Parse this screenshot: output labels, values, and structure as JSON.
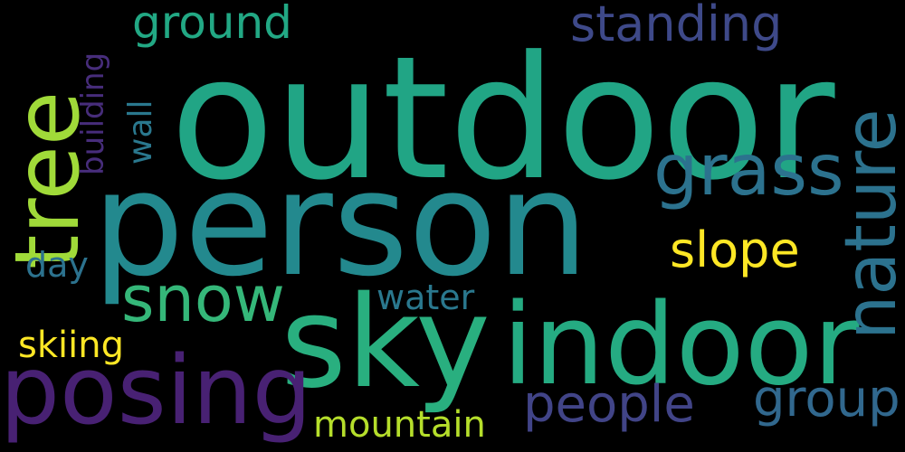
{
  "words": [
    {
      "id": "outdoor",
      "text": "outdoor",
      "color": "#21a585"
    },
    {
      "id": "person",
      "text": "person",
      "color": "#23898e"
    },
    {
      "id": "sky",
      "text": "sky",
      "color": "#29af7f"
    },
    {
      "id": "indoor",
      "text": "indoor",
      "color": "#25ab82"
    },
    {
      "id": "posing",
      "text": "posing",
      "color": "#482173"
    },
    {
      "id": "tree",
      "text": "tree",
      "color": "#a0da39"
    },
    {
      "id": "nature",
      "text": "nature",
      "color": "#2c728e"
    },
    {
      "id": "snow",
      "text": "snow",
      "color": "#35b779"
    },
    {
      "id": "grass",
      "text": "grass",
      "color": "#2c728e"
    },
    {
      "id": "standing",
      "text": "standing",
      "color": "#3e4989"
    },
    {
      "id": "ground",
      "text": "ground",
      "color": "#22a884"
    },
    {
      "id": "slope",
      "text": "slope",
      "color": "#fde725"
    },
    {
      "id": "people",
      "text": "people",
      "color": "#414487"
    },
    {
      "id": "group",
      "text": "group",
      "color": "#31688e"
    },
    {
      "id": "mountain",
      "text": "mountain",
      "color": "#b5de2b"
    },
    {
      "id": "water",
      "text": "water",
      "color": "#2a788e"
    },
    {
      "id": "skiing",
      "text": "skiing",
      "color": "#fde725"
    },
    {
      "id": "day",
      "text": "day",
      "color": "#2c728e"
    },
    {
      "id": "building",
      "text": "building",
      "color": "#472d7b"
    },
    {
      "id": "wall",
      "text": "wall",
      "color": "#2a788e"
    }
  ]
}
